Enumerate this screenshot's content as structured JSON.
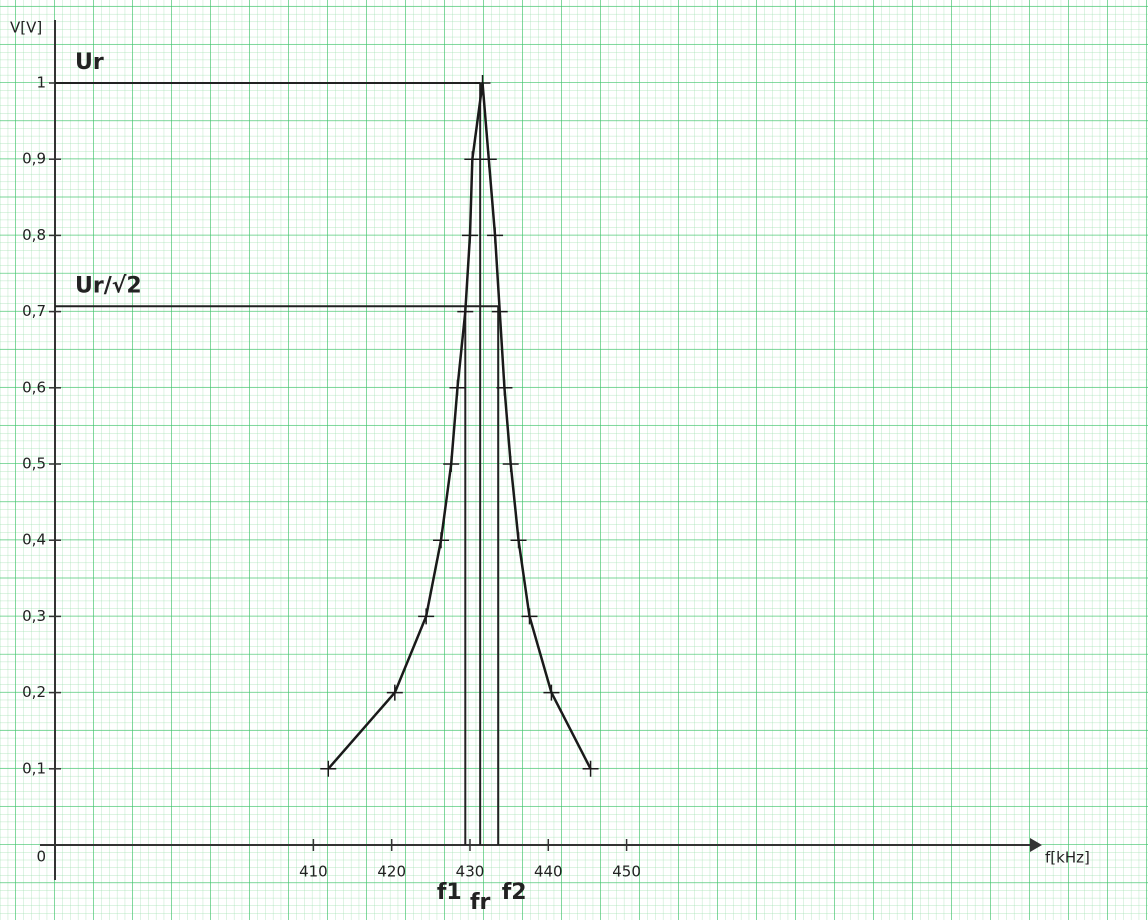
{
  "chart_data": {
    "type": "line",
    "y_axis_label": "V[V]",
    "x_axis_label": "f[kHz]",
    "x": [
      411.9,
      420.4,
      424.4,
      426.3,
      427.6,
      428.4,
      429.4,
      430.0,
      430.3,
      431.6,
      432.4,
      433.2,
      433.8,
      434.4,
      435.2,
      436.2,
      437.6,
      440.4,
      445.4
    ],
    "values": [
      0.1,
      0.2,
      0.3,
      0.4,
      0.5,
      0.6,
      0.7,
      0.8,
      0.9,
      1.0,
      0.9,
      0.8,
      0.7,
      0.6,
      0.5,
      0.4,
      0.3,
      0.2,
      0.1
    ],
    "color": "#1a1a1a",
    "xlim": [
      377,
      501
    ],
    "ylim": [
      0,
      1.05
    ],
    "xticks": [
      410,
      420,
      430,
      440,
      450
    ],
    "yticks": [
      0,
      {
        "value": 0.1,
        "label": "0,1"
      },
      {
        "value": 0.2,
        "label": "0,2"
      },
      {
        "value": 0.3,
        "label": "0,3"
      },
      {
        "value": 0.4,
        "label": "0,4"
      },
      {
        "value": 0.5,
        "label": "0,5"
      },
      {
        "value": 0.6,
        "label": "0,6"
      },
      {
        "value": 0.7,
        "label": "0,7"
      },
      {
        "value": 0.8,
        "label": "0,8"
      },
      {
        "value": 0.9,
        "label": "0,9"
      },
      1
    ],
    "hlines": [
      {
        "label": "Ur",
        "value": 1.0
      },
      {
        "label": "Ur/√2",
        "value": 0.707
      }
    ],
    "vlines": [
      {
        "label": "f1",
        "value": 429.4
      },
      {
        "label": "fr",
        "value": 431.3
      },
      {
        "label": "f2",
        "value": 433.6
      }
    ]
  }
}
